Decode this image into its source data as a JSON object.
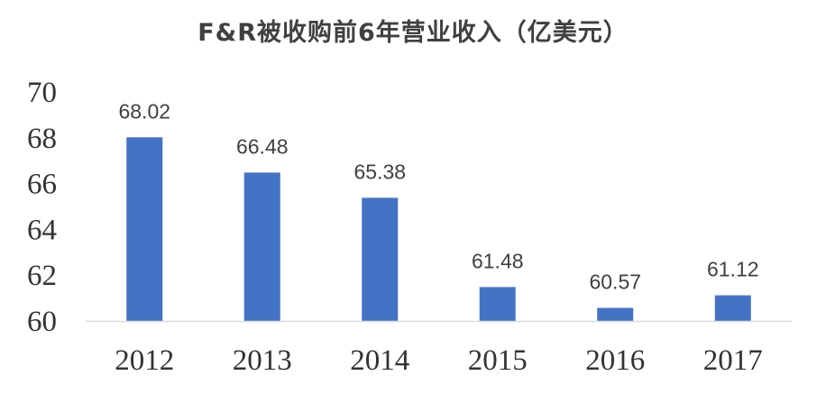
{
  "chart_data": {
    "type": "bar",
    "title": "F&R被收购前6年营业收入（亿美元）",
    "categories": [
      "2012",
      "2013",
      "2014",
      "2015",
      "2016",
      "2017"
    ],
    "values": [
      68.02,
      66.48,
      65.38,
      61.48,
      60.57,
      61.12
    ],
    "data_labels": [
      "68.02",
      "66.48",
      "65.38",
      "61.48",
      "60.57",
      "61.12"
    ],
    "yticks": [
      "60",
      "62",
      "64",
      "66",
      "68",
      "70"
    ],
    "ylim": [
      60,
      70
    ],
    "xlabel": "",
    "ylabel": "",
    "grid": false,
    "legend": "none",
    "bar_color": "#4472C4",
    "axis_color": "#D9D9D9"
  }
}
